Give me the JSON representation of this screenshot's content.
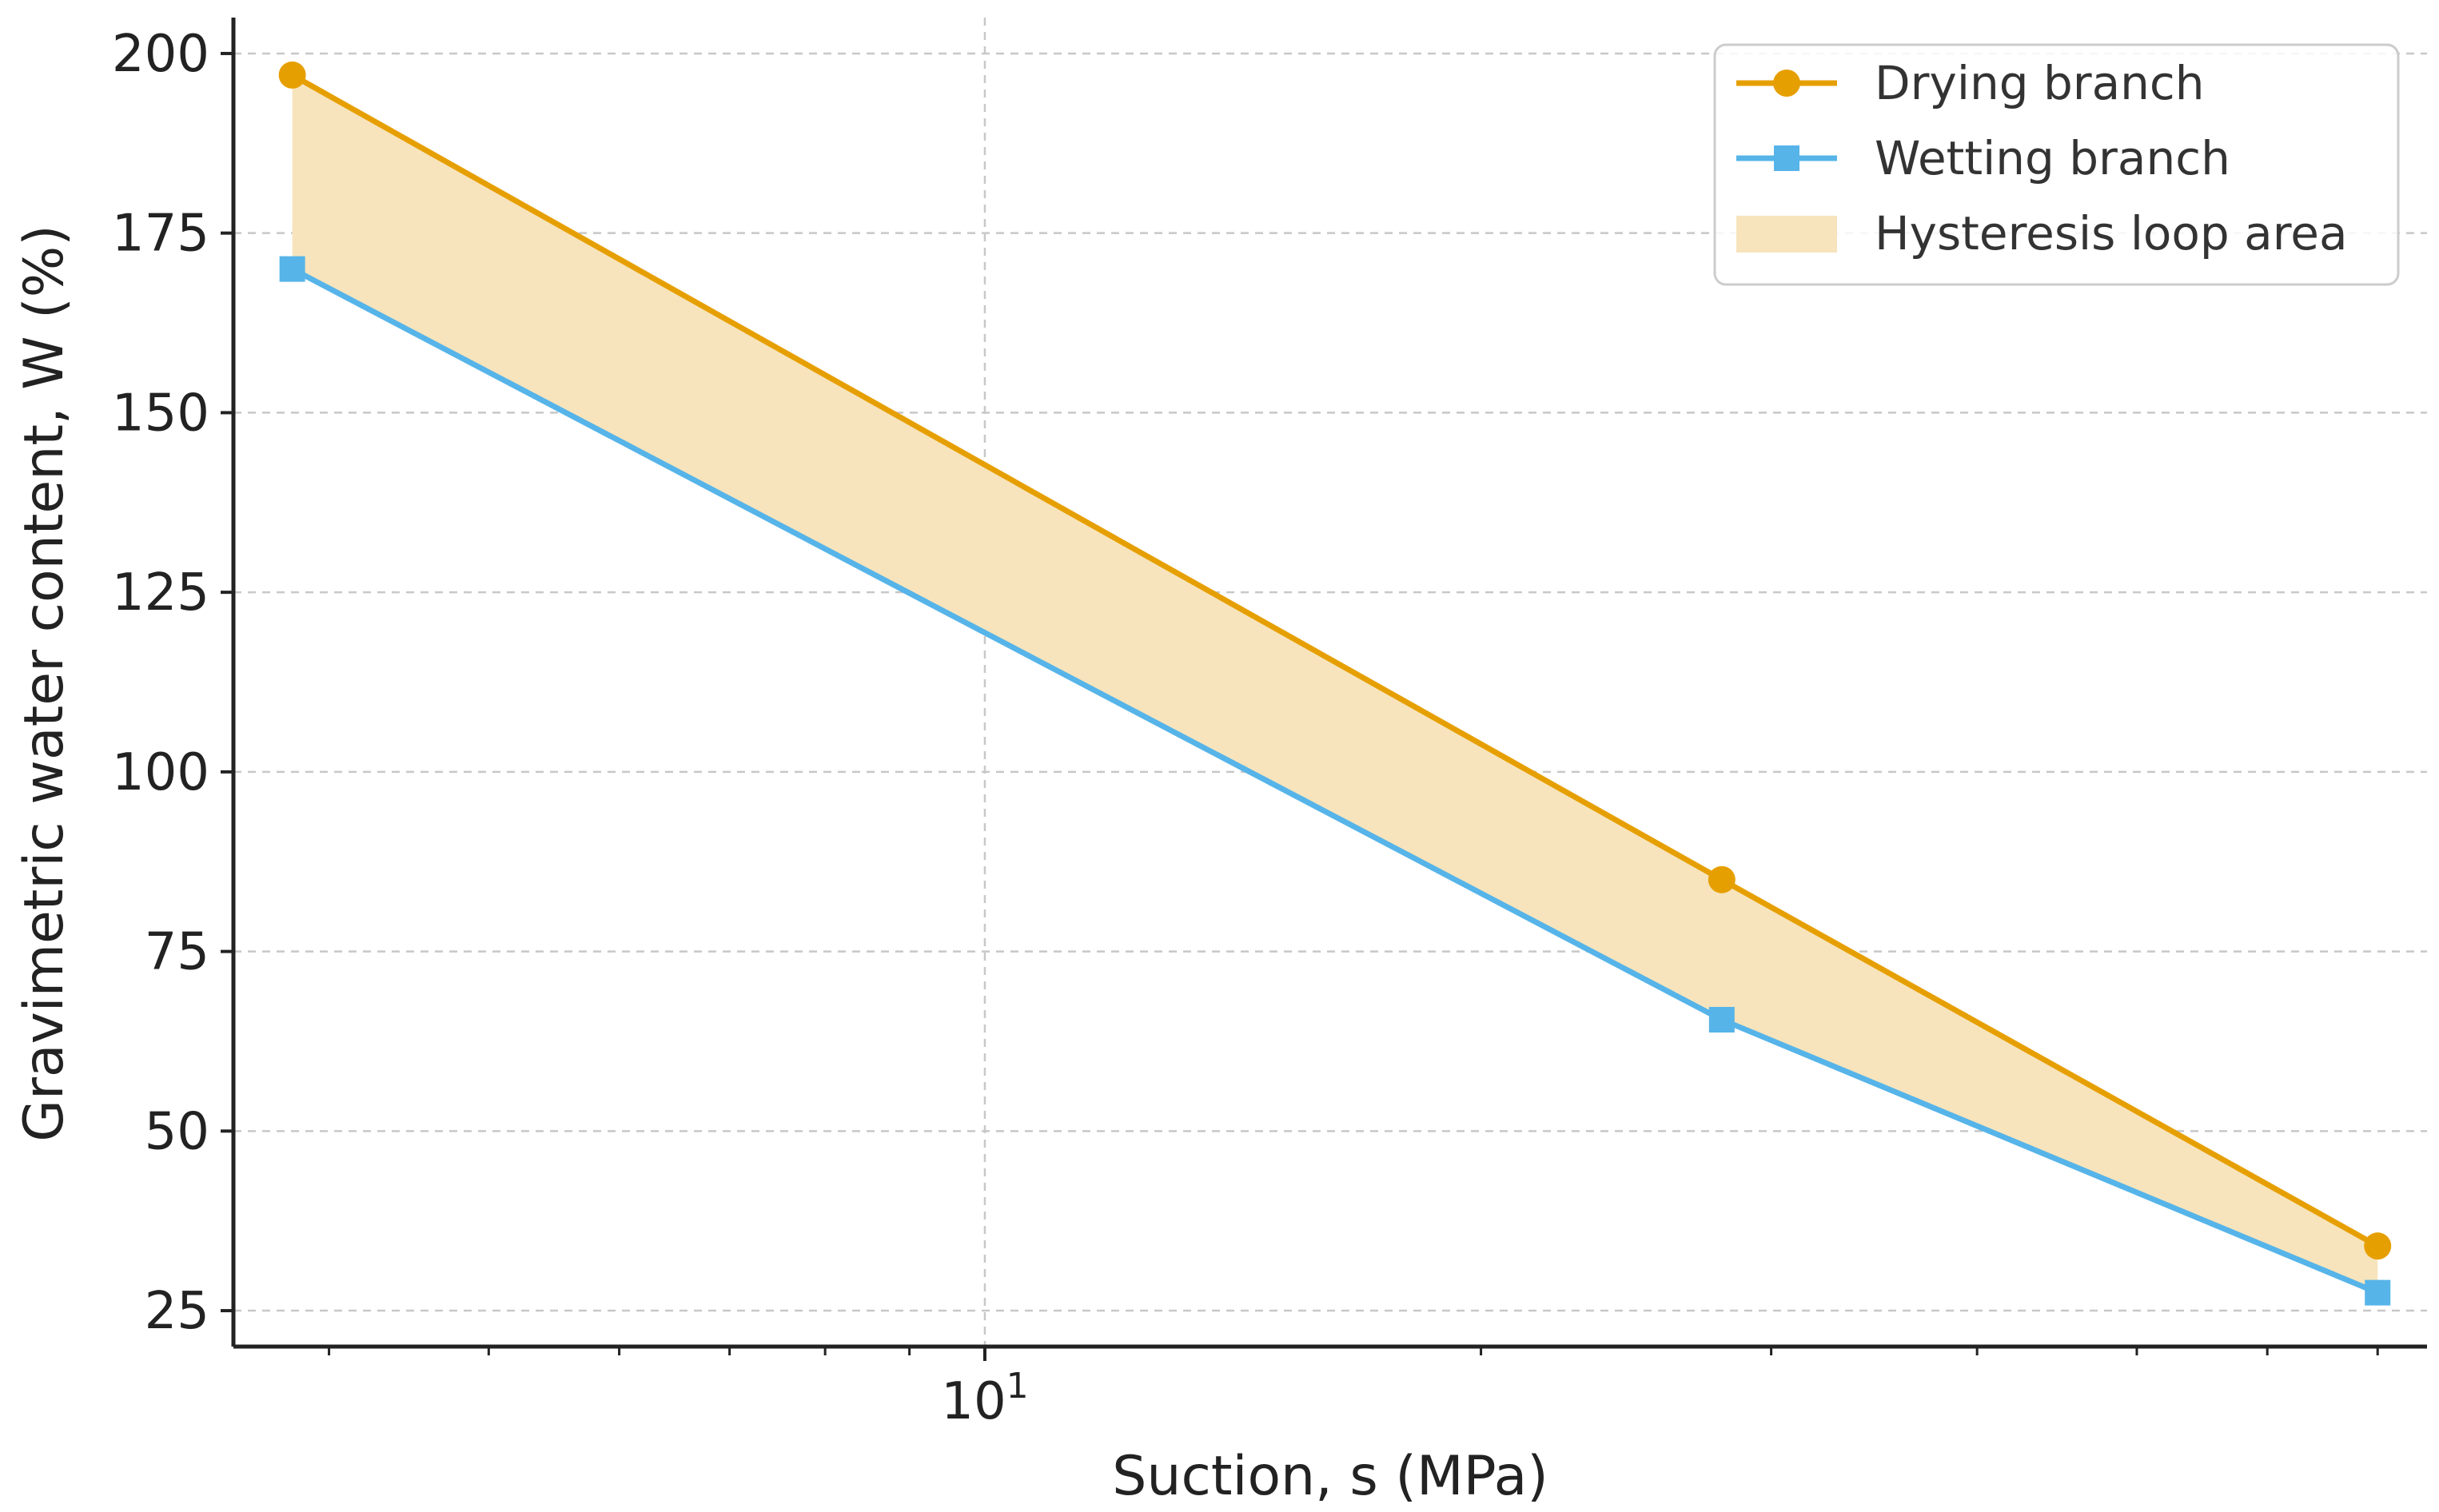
{
  "chart_data": {
    "type": "line",
    "title": "",
    "xlabel": "Suction, s (MPa)",
    "ylabel": "Gravimetric water content, W (%)",
    "xscale": "log",
    "xlim": [
      3.5,
      75
    ],
    "ylim": [
      20,
      205
    ],
    "yticks": [
      25,
      50,
      75,
      100,
      125,
      150,
      175,
      200
    ],
    "ytick_labels": [
      "25",
      "50",
      "75",
      "100",
      "125",
      "150",
      "175",
      "200"
    ],
    "xtick_major": [
      10
    ],
    "xtick_major_base": "10",
    "xtick_major_exp": "1",
    "xtick_minor": [
      4,
      5,
      6,
      7,
      8,
      9,
      20,
      30,
      40,
      50,
      60,
      70
    ],
    "grid": true,
    "legend_position": "top-right",
    "series": [
      {
        "name": "Drying branch",
        "color": "#E69F00",
        "marker": "circle",
        "x": [
          3.8,
          28,
          70
        ],
        "y": [
          197,
          85,
          34
        ]
      },
      {
        "name": "Wetting branch",
        "color": "#56B4E9",
        "marker": "square",
        "x": [
          3.8,
          28,
          70
        ],
        "y": [
          170,
          65.5,
          27.5
        ]
      }
    ],
    "fill": {
      "name": "Hysteresis loop area",
      "color": "#F7E4BC",
      "between": [
        "Drying branch",
        "Wetting branch"
      ]
    }
  }
}
